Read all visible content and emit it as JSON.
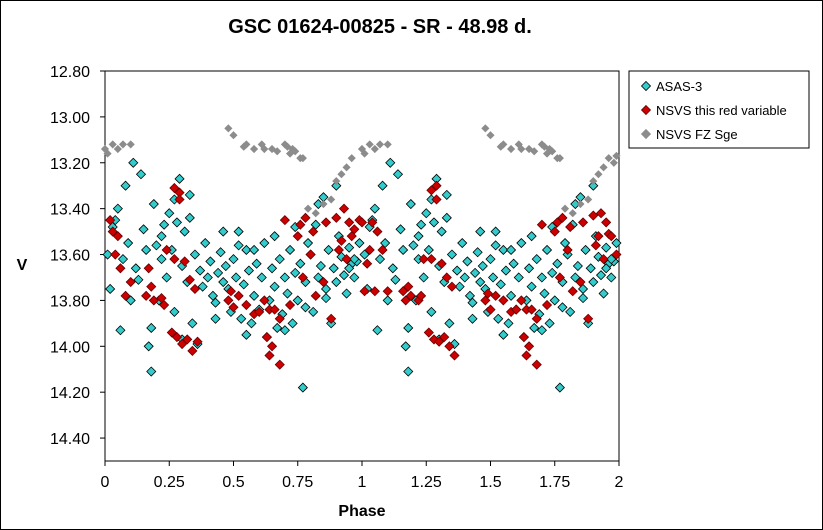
{
  "chart_data": {
    "type": "scatter",
    "title": "GSC 01624-00825  - SR - 48.98 d.",
    "xlabel": "Phase",
    "ylabel": "V",
    "xlim": [
      0,
      2
    ],
    "ylim": [
      12.8,
      14.5
    ],
    "y_inverted": true,
    "x_ticks": [
      "0",
      "0.25",
      "0.5",
      "0.75",
      "1",
      "1.25",
      "1.5",
      "1.75",
      "2"
    ],
    "y_ticks": [
      "12.80",
      "13.00",
      "13.20",
      "13.40",
      "13.60",
      "13.80",
      "14.00",
      "14.20",
      "14.40"
    ],
    "grid": false,
    "legend_position": "top-right",
    "series": [
      {
        "name": "ASAS-3",
        "marker": "diamond",
        "color": "#33CCCC",
        "edge": "#000000",
        "x": [
          0.01,
          0.02,
          0.03,
          0.05,
          0.06,
          0.07,
          0.09,
          0.1,
          0.11,
          0.12,
          0.13,
          0.15,
          0.16,
          0.17,
          0.18,
          0.19,
          0.2,
          0.21,
          0.22,
          0.23,
          0.24,
          0.25,
          0.26,
          0.27,
          0.28,
          0.29,
          0.3,
          0.31,
          0.32,
          0.33,
          0.34,
          0.35,
          0.36,
          0.37,
          0.38,
          0.39,
          0.4,
          0.41,
          0.42,
          0.43,
          0.44,
          0.45,
          0.46,
          0.47,
          0.48,
          0.49,
          0.5,
          0.51,
          0.52,
          0.53,
          0.54,
          0.55,
          0.56,
          0.57,
          0.58,
          0.59,
          0.6,
          0.61,
          0.62,
          0.63,
          0.64,
          0.65,
          0.66,
          0.67,
          0.68,
          0.69,
          0.7,
          0.71,
          0.72,
          0.73,
          0.74,
          0.75,
          0.76,
          0.77,
          0.78,
          0.79,
          0.8,
          0.81,
          0.82,
          0.83,
          0.84,
          0.85,
          0.86,
          0.87,
          0.88,
          0.89,
          0.9,
          0.91,
          0.92,
          0.93,
          0.94,
          0.95,
          0.96,
          0.97,
          0.98,
          0.99,
          1.01,
          1.02,
          1.03,
          1.05,
          1.06,
          1.07,
          1.09,
          1.1,
          1.11,
          1.12,
          1.13,
          1.15,
          1.16,
          1.17,
          1.18,
          1.19,
          1.2,
          1.21,
          1.22,
          1.23,
          1.24,
          1.25,
          1.26,
          1.27,
          1.28,
          1.29,
          1.3,
          1.31,
          1.32,
          1.33,
          1.34,
          1.35,
          1.36,
          1.37,
          1.38,
          1.39,
          1.4,
          1.41,
          1.42,
          1.43,
          1.44,
          1.45,
          1.46,
          1.47,
          1.48,
          1.49,
          1.5,
          1.51,
          1.52,
          1.53,
          1.54,
          1.55,
          1.56,
          1.57,
          1.58,
          1.59,
          1.6,
          1.61,
          1.62,
          1.63,
          1.64,
          1.65,
          1.66,
          1.67,
          1.68,
          1.69,
          1.7,
          1.71,
          1.72,
          1.73,
          1.74,
          1.75,
          1.76,
          1.77,
          1.78,
          1.79,
          1.8,
          1.81,
          1.82,
          1.83,
          1.84,
          1.85,
          1.86,
          1.87,
          1.88,
          1.89,
          1.9,
          1.91,
          1.92,
          1.93,
          1.94,
          1.95,
          1.96,
          1.97,
          1.98,
          1.99,
          0.04,
          0.08,
          0.14,
          0.22,
          0.27,
          0.33,
          0.46,
          0.52,
          0.58,
          0.66,
          0.74,
          0.83,
          0.9,
          0.95,
          1.04,
          1.08,
          1.14,
          1.22,
          1.27,
          1.33,
          1.46,
          1.52,
          1.58,
          1.66,
          1.74,
          1.83,
          1.9,
          1.95,
          0.18,
          0.3,
          0.43,
          0.55,
          0.7,
          0.78,
          0.86,
          0.97,
          1.18,
          1.3,
          1.43,
          1.55,
          1.7,
          1.78,
          1.86,
          1.97
        ],
        "y": [
          13.6,
          13.75,
          13.48,
          13.4,
          13.93,
          13.62,
          13.55,
          13.8,
          13.2,
          13.66,
          13.71,
          13.49,
          13.58,
          14.0,
          14.11,
          13.38,
          13.56,
          13.8,
          13.62,
          13.47,
          13.7,
          13.42,
          13.58,
          13.85,
          13.46,
          13.27,
          13.65,
          13.5,
          13.72,
          13.44,
          13.9,
          13.6,
          13.99,
          13.67,
          13.74,
          13.55,
          13.7,
          13.63,
          13.78,
          13.81,
          13.68,
          13.59,
          13.72,
          13.65,
          13.75,
          13.85,
          13.62,
          13.7,
          13.5,
          13.88,
          13.73,
          13.58,
          13.67,
          13.9,
          13.78,
          13.64,
          13.84,
          13.7,
          13.55,
          13.96,
          13.8,
          13.66,
          13.74,
          13.92,
          13.62,
          13.86,
          13.7,
          13.77,
          13.58,
          13.9,
          13.68,
          13.8,
          13.64,
          14.18,
          13.72,
          13.55,
          13.6,
          13.85,
          13.47,
          13.7,
          13.65,
          13.35,
          13.75,
          13.58,
          13.9,
          13.66,
          13.72,
          13.52,
          13.61,
          13.69,
          13.77,
          13.57,
          13.64,
          13.7,
          13.63,
          13.55,
          13.6,
          13.75,
          13.48,
          13.4,
          13.93,
          13.62,
          13.55,
          13.8,
          13.2,
          13.66,
          13.71,
          13.49,
          13.58,
          14.0,
          14.11,
          13.38,
          13.56,
          13.8,
          13.62,
          13.47,
          13.7,
          13.42,
          13.58,
          13.85,
          13.46,
          13.27,
          13.65,
          13.5,
          13.72,
          13.44,
          13.9,
          13.6,
          13.99,
          13.67,
          13.74,
          13.55,
          13.7,
          13.63,
          13.78,
          13.81,
          13.68,
          13.59,
          13.72,
          13.65,
          13.75,
          13.85,
          13.62,
          13.7,
          13.5,
          13.88,
          13.73,
          13.58,
          13.67,
          13.9,
          13.78,
          13.64,
          13.84,
          13.7,
          13.55,
          13.96,
          13.8,
          13.66,
          13.74,
          13.92,
          13.62,
          13.86,
          13.7,
          13.77,
          13.58,
          13.9,
          13.68,
          13.8,
          13.64,
          14.18,
          13.72,
          13.55,
          13.6,
          13.85,
          13.47,
          13.7,
          13.65,
          13.35,
          13.75,
          13.58,
          13.9,
          13.66,
          13.72,
          13.52,
          13.61,
          13.69,
          13.77,
          13.57,
          13.64,
          13.7,
          13.63,
          13.55,
          13.45,
          13.3,
          13.25,
          13.52,
          13.36,
          13.34,
          13.5,
          13.56,
          13.58,
          13.52,
          13.48,
          13.38,
          13.3,
          13.66,
          13.45,
          13.3,
          13.25,
          13.52,
          13.36,
          13.34,
          13.5,
          13.56,
          13.58,
          13.52,
          13.48,
          13.38,
          13.3,
          13.66,
          13.92,
          13.97,
          13.88,
          13.95,
          13.93,
          13.83,
          13.79,
          13.62,
          13.92,
          13.97,
          13.88,
          13.95,
          13.93,
          13.83,
          13.79,
          13.62
        ]
      },
      {
        "name": "NSVS this red variable",
        "marker": "diamond",
        "color": "#CC0000",
        "edge": "#660000",
        "x": [
          0.02,
          0.03,
          0.04,
          0.05,
          0.06,
          0.08,
          0.1,
          0.16,
          0.17,
          0.18,
          0.19,
          0.22,
          0.23,
          0.24,
          0.26,
          0.27,
          0.28,
          0.29,
          0.3,
          0.31,
          0.32,
          0.33,
          0.34,
          0.35,
          0.36,
          0.48,
          0.49,
          0.5,
          0.52,
          0.55,
          0.58,
          0.6,
          0.62,
          0.63,
          0.64,
          0.65,
          0.66,
          0.68,
          0.7,
          0.72,
          0.75,
          0.76,
          0.77,
          0.78,
          0.8,
          0.81,
          0.82,
          0.85,
          0.86,
          0.88,
          0.9,
          0.91,
          0.92,
          0.93,
          0.94,
          0.95,
          0.96,
          0.97,
          0.99,
          1.0,
          1.01,
          1.02,
          1.03,
          1.04,
          1.05,
          1.06,
          1.08,
          1.1,
          1.16,
          1.17,
          1.18,
          1.19,
          1.22,
          1.23,
          1.24,
          1.26,
          1.27,
          1.28,
          1.29,
          1.3,
          1.31,
          1.32,
          1.33,
          1.34,
          1.35,
          1.36,
          1.48,
          1.49,
          1.5,
          1.52,
          1.55,
          1.58,
          1.6,
          1.62,
          1.63,
          1.64,
          1.65,
          1.66,
          1.68,
          1.7,
          1.72,
          1.75,
          1.76,
          1.77,
          1.78,
          1.8,
          1.81,
          1.82,
          1.85,
          1.86,
          1.88,
          1.9,
          1.91,
          1.92,
          1.93,
          1.94,
          1.95,
          1.96,
          1.97,
          1.99,
          0.27,
          0.29,
          0.64,
          0.68,
          1.27,
          1.29,
          1.64,
          1.68
        ],
        "y": [
          13.45,
          13.5,
          13.6,
          13.52,
          13.66,
          13.78,
          13.72,
          13.78,
          13.66,
          13.74,
          13.8,
          13.79,
          13.82,
          13.58,
          13.94,
          13.31,
          13.96,
          13.33,
          13.99,
          13.63,
          13.97,
          13.71,
          14.02,
          13.75,
          13.98,
          13.8,
          13.76,
          13.83,
          13.78,
          13.82,
          13.86,
          13.85,
          13.8,
          13.96,
          13.84,
          14.0,
          13.84,
          13.88,
          13.45,
          13.82,
          13.52,
          13.47,
          13.7,
          13.44,
          13.6,
          13.5,
          13.78,
          13.72,
          13.46,
          13.88,
          13.44,
          13.58,
          13.54,
          13.4,
          13.62,
          13.46,
          13.52,
          13.49,
          13.45,
          13.46,
          13.76,
          13.64,
          13.58,
          13.46,
          13.76,
          13.5,
          13.58,
          13.76,
          13.76,
          13.8,
          13.74,
          13.78,
          13.8,
          13.78,
          13.62,
          13.94,
          13.32,
          13.97,
          13.3,
          13.98,
          13.64,
          13.96,
          13.7,
          14.0,
          13.74,
          14.04,
          13.8,
          13.77,
          13.84,
          13.78,
          13.8,
          13.85,
          13.84,
          13.8,
          13.96,
          13.84,
          14.0,
          13.84,
          13.88,
          13.47,
          13.82,
          13.5,
          13.46,
          13.7,
          13.44,
          13.58,
          13.48,
          13.76,
          13.72,
          13.46,
          13.88,
          13.43,
          13.56,
          13.52,
          13.42,
          13.62,
          13.46,
          13.51,
          13.52,
          13.6,
          13.62,
          13.36,
          14.04,
          14.08,
          13.62,
          13.36,
          14.04,
          14.08
        ]
      },
      {
        "name": "NSVS FZ Sge",
        "marker": "diamond",
        "color": "#8C8C8C",
        "edge": "#8C8C8C",
        "x": [
          0.0,
          0.01,
          0.03,
          0.05,
          0.07,
          0.1,
          0.48,
          0.5,
          0.54,
          0.55,
          0.58,
          0.61,
          0.62,
          0.65,
          0.67,
          0.7,
          0.71,
          0.72,
          0.73,
          0.74,
          0.76,
          0.77,
          0.79,
          0.82,
          0.85,
          0.88,
          0.9,
          0.92,
          0.94,
          0.96,
          1.0,
          1.01,
          1.03,
          1.05,
          1.07,
          1.1,
          1.48,
          1.5,
          1.54,
          1.55,
          1.58,
          1.61,
          1.62,
          1.65,
          1.67,
          1.7,
          1.71,
          1.72,
          1.73,
          1.74,
          1.76,
          1.77,
          1.79,
          1.82,
          1.85,
          1.88,
          1.9,
          1.92,
          1.94,
          1.96,
          1.98,
          1.99
        ],
        "y": [
          13.14,
          13.16,
          13.12,
          13.14,
          13.12,
          13.12,
          13.05,
          13.08,
          13.13,
          13.12,
          13.14,
          13.12,
          13.14,
          13.14,
          13.15,
          13.12,
          13.13,
          13.16,
          13.14,
          13.15,
          13.18,
          13.18,
          13.4,
          13.42,
          13.38,
          13.36,
          13.28,
          13.25,
          13.22,
          13.18,
          13.14,
          13.16,
          13.12,
          13.14,
          13.12,
          13.12,
          13.05,
          13.08,
          13.13,
          13.12,
          13.14,
          13.12,
          13.14,
          13.14,
          13.15,
          13.12,
          13.13,
          13.16,
          13.14,
          13.15,
          13.18,
          13.18,
          13.4,
          13.42,
          13.38,
          13.36,
          13.28,
          13.25,
          13.22,
          13.18,
          13.2,
          13.17
        ]
      }
    ]
  }
}
